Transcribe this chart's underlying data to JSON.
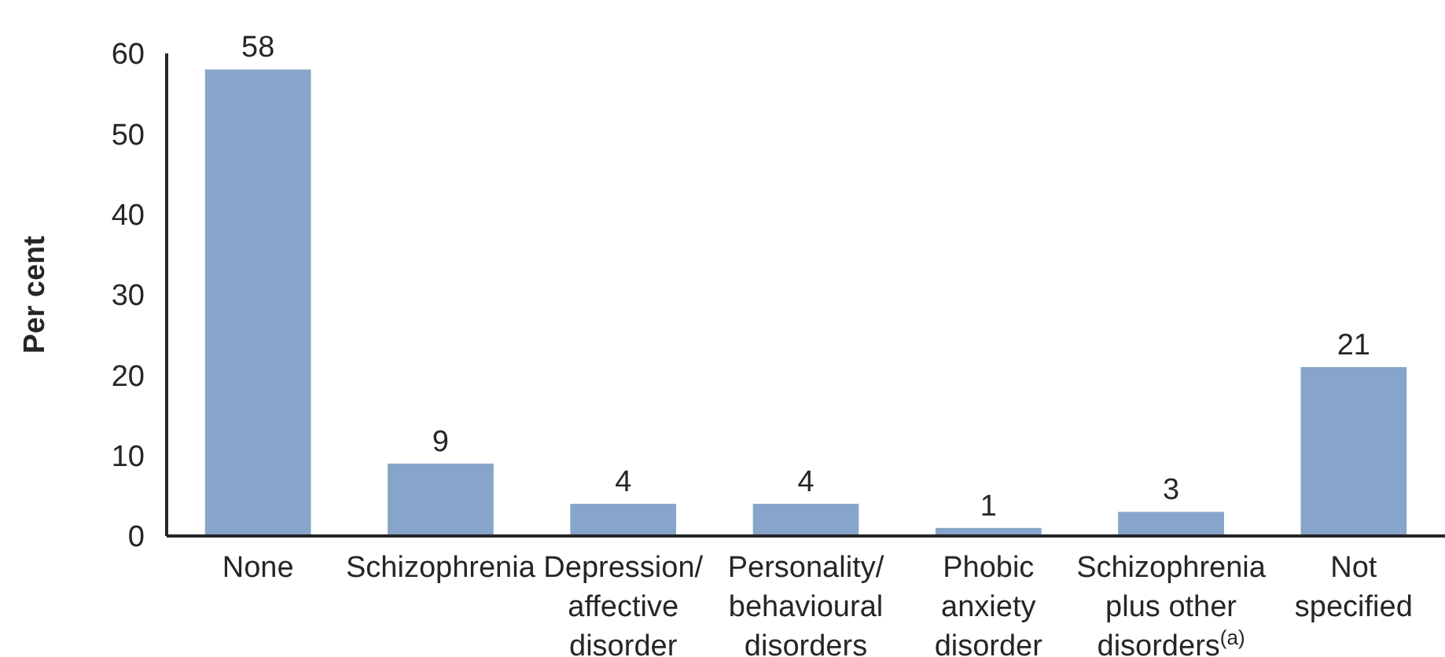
{
  "chart_data": {
    "type": "bar",
    "ylabel": "Per cent",
    "categories": [
      "None",
      "Schizophrenia",
      "Depression/ affective disorder",
      "Personality/ behavioural disorders",
      "Phobic anxiety disorder",
      "Schizophrenia plus other disorders$^{(a)}$",
      "Not specified"
    ],
    "values": [
      58,
      9,
      4,
      4,
      1,
      3,
      21
    ],
    "color": "#87a5ca",
    "ylim": [
      0,
      60
    ],
    "yticks": [
      0,
      10,
      20,
      30,
      40,
      50,
      60
    ],
    "data_labels": true
  }
}
